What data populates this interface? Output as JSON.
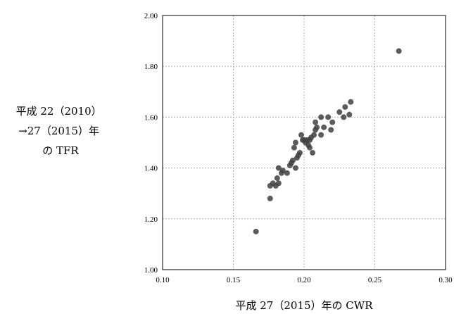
{
  "chart_data": {
    "type": "scatter",
    "title": "",
    "xlabel": "平成 27（2015）年の CWR",
    "ylabel_lines": [
      "平成 22（2010）",
      "→27（2015）年",
      "の TFR"
    ],
    "xlim": [
      0.1,
      0.3
    ],
    "ylim": [
      1.0,
      2.0
    ],
    "x_ticks": [
      "0.10",
      "0.15",
      "0.20",
      "0.25",
      "0.30"
    ],
    "y_ticks": [
      "1.00",
      "1.20",
      "1.40",
      "1.60",
      "1.80",
      "2.00"
    ],
    "grid": true,
    "marker_color": "#404040",
    "points": [
      {
        "x": 0.166,
        "y": 1.15
      },
      {
        "x": 0.176,
        "y": 1.28
      },
      {
        "x": 0.176,
        "y": 1.33
      },
      {
        "x": 0.178,
        "y": 1.34
      },
      {
        "x": 0.18,
        "y": 1.33
      },
      {
        "x": 0.181,
        "y": 1.36
      },
      {
        "x": 0.182,
        "y": 1.34
      },
      {
        "x": 0.182,
        "y": 1.4
      },
      {
        "x": 0.184,
        "y": 1.38
      },
      {
        "x": 0.185,
        "y": 1.39
      },
      {
        "x": 0.188,
        "y": 1.38
      },
      {
        "x": 0.19,
        "y": 1.41
      },
      {
        "x": 0.191,
        "y": 1.42
      },
      {
        "x": 0.192,
        "y": 1.43
      },
      {
        "x": 0.193,
        "y": 1.48
      },
      {
        "x": 0.194,
        "y": 1.5
      },
      {
        "x": 0.194,
        "y": 1.4
      },
      {
        "x": 0.195,
        "y": 1.44
      },
      {
        "x": 0.196,
        "y": 1.45
      },
      {
        "x": 0.197,
        "y": 1.46
      },
      {
        "x": 0.198,
        "y": 1.53
      },
      {
        "x": 0.199,
        "y": 1.51
      },
      {
        "x": 0.2,
        "y": 1.51
      },
      {
        "x": 0.201,
        "y": 1.5
      },
      {
        "x": 0.202,
        "y": 1.51
      },
      {
        "x": 0.203,
        "y": 1.49
      },
      {
        "x": 0.204,
        "y": 1.51
      },
      {
        "x": 0.204,
        "y": 1.48
      },
      {
        "x": 0.205,
        "y": 1.52
      },
      {
        "x": 0.206,
        "y": 1.46
      },
      {
        "x": 0.207,
        "y": 1.53
      },
      {
        "x": 0.208,
        "y": 1.55
      },
      {
        "x": 0.208,
        "y": 1.58
      },
      {
        "x": 0.209,
        "y": 1.56
      },
      {
        "x": 0.212,
        "y": 1.53
      },
      {
        "x": 0.212,
        "y": 1.6
      },
      {
        "x": 0.214,
        "y": 1.56
      },
      {
        "x": 0.217,
        "y": 1.6
      },
      {
        "x": 0.219,
        "y": 1.55
      },
      {
        "x": 0.22,
        "y": 1.58
      },
      {
        "x": 0.225,
        "y": 1.62
      },
      {
        "x": 0.228,
        "y": 1.6
      },
      {
        "x": 0.229,
        "y": 1.64
      },
      {
        "x": 0.232,
        "y": 1.61
      },
      {
        "x": 0.233,
        "y": 1.66
      },
      {
        "x": 0.267,
        "y": 1.86
      }
    ]
  }
}
